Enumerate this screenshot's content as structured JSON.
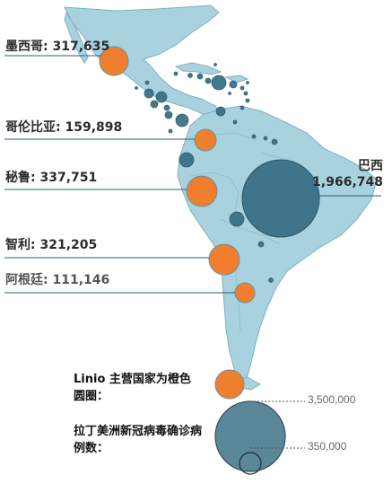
{
  "colors": {
    "land": "#a9d2df",
    "land_border": "#7fb0c2",
    "host_bubble": "#ef7f2f",
    "case_bubble": "#3a7187",
    "case_bubble_legend": "#5a8898",
    "leader_line": "#2f5f7a"
  },
  "map": {
    "labels": {
      "mexico": "墨西哥: 317,635",
      "colombia": "哥伦比亚: 159,898",
      "peru": "秘鲁: 337,751",
      "brazil_name": "巴西",
      "brazil_value": "1,966,748",
      "chile": "智利: 321,205",
      "argentina": "阿根廷: 111,146"
    }
  },
  "legend": {
    "hosts_title": "Linio 主营国家为橙色圆圈：",
    "cases_title": "拉丁美洲新冠病毒确诊病例数：",
    "large_value": "3,500,000",
    "small_value": "350,000"
  }
}
